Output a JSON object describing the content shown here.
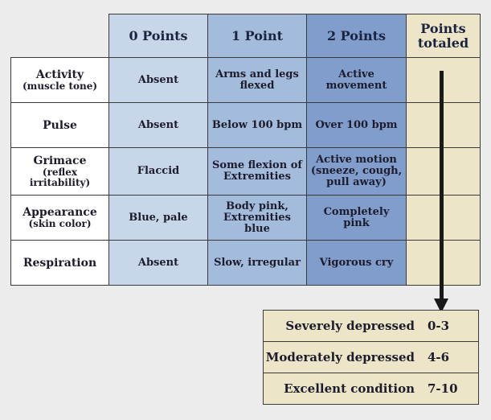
{
  "header": {
    "col0": "0 Points",
    "col1": "1 Point",
    "col2": "2 Points",
    "total_line1": "Points",
    "total_line2": "totaled"
  },
  "rows": [
    {
      "label": "Activity",
      "sublabel": "(muscle tone)",
      "p0": "Absent",
      "p1_line1": "Arms and legs",
      "p1_line2": "flexed",
      "p2_line1": "Active",
      "p2_line2": "movement",
      "p2_line3": ""
    },
    {
      "label": "Pulse",
      "sublabel": "",
      "p0": "Absent",
      "p1_line1": "Below 100 bpm",
      "p1_line2": "",
      "p2_line1": "Over 100 bpm",
      "p2_line2": "",
      "p2_line3": ""
    },
    {
      "label": "Grimace",
      "sublabel": "(reflex irritability)",
      "p0": "Flaccid",
      "p1_line1": "Some flexion of",
      "p1_line2": "Extremities",
      "p2_line1": "Active motion",
      "p2_line2": "(sneeze, cough,",
      "p2_line3": "pull away)"
    },
    {
      "label": "Appearance",
      "sublabel": "(skin color)",
      "p0": "Blue, pale",
      "p1_line1": "Body pink,",
      "p1_line2": "Extremities blue",
      "p2_line1": "Completely",
      "p2_line2": "pink",
      "p2_line3": ""
    },
    {
      "label": "Respiration",
      "sublabel": "",
      "p0": "Absent",
      "p1_line1": "Slow, irregular",
      "p1_line2": "",
      "p2_line1": "Vigorous cry",
      "p2_line2": "",
      "p2_line3": ""
    }
  ],
  "results": [
    {
      "label": "Severely depressed",
      "range": "0-3"
    },
    {
      "label": "Moderately depressed",
      "range": "4-6"
    },
    {
      "label": "Excellent condition",
      "range": "7-10"
    }
  ],
  "colors": {
    "col0": "#c7d6e8",
    "col1": "#a4bcdc",
    "col2": "#809dcc",
    "points": "#ece5c7",
    "arrow": "#1a1a1a"
  }
}
